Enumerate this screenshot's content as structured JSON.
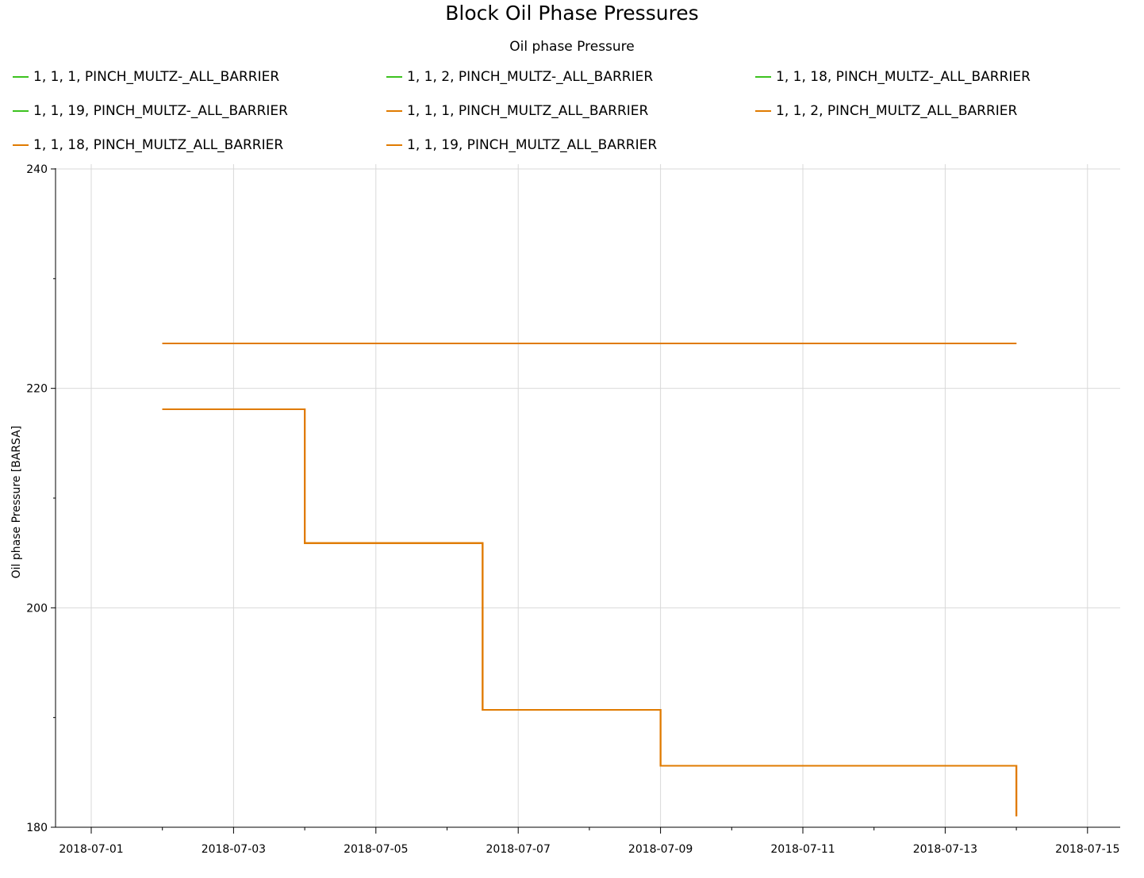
{
  "chart_data": {
    "type": "line",
    "title": "Block Oil Phase Pressures",
    "subtitle": "Oil phase Pressure",
    "ylabel": "Oil phase Pressure [BARSA]",
    "xlabel": "",
    "xlim": [
      "2018-07-01",
      "2018-07-15"
    ],
    "ylim": [
      180,
      240
    ],
    "x_ticks": [
      "2018-07-01",
      "2018-07-03",
      "2018-07-05",
      "2018-07-07",
      "2018-07-09",
      "2018-07-11",
      "2018-07-13",
      "2018-07-15"
    ],
    "y_ticks": [
      180,
      200,
      220,
      240
    ],
    "grid": true,
    "legend_position": "top",
    "step": true,
    "series": [
      {
        "name": "1, 1, 1, PINCH_MULTZ-_ALL_BARRIER",
        "color": "#3cb371",
        "x": [
          "2018-07-02",
          "2018-07-04",
          "2018-07-06.5",
          "2018-07-09",
          "2018-07-14"
        ],
        "y": [
          218.1,
          205.9,
          190.7,
          185.6,
          181.0
        ]
      },
      {
        "name": "1, 1, 2, PINCH_MULTZ-_ALL_BARRIER",
        "color": "#3cb371",
        "x": [
          "2018-07-02",
          "2018-07-04",
          "2018-07-06.5",
          "2018-07-09",
          "2018-07-14"
        ],
        "y": [
          218.1,
          205.9,
          190.7,
          185.6,
          181.0
        ]
      },
      {
        "name": "1, 1, 18, PINCH_MULTZ-_ALL_BARRIER",
        "color": "#3cb371",
        "x": [
          "2018-07-02",
          "2018-07-14"
        ],
        "y": [
          224.1,
          224.1
        ]
      },
      {
        "name": "1, 1, 19, PINCH_MULTZ-_ALL_BARRIER",
        "color": "#3cb371",
        "x": [
          "2018-07-02",
          "2018-07-14"
        ],
        "y": [
          224.1,
          224.1
        ]
      },
      {
        "name": "1, 1, 1, PINCH_MULTZ_ALL_BARRIER",
        "color": "#e07b00",
        "x": [
          "2018-07-02",
          "2018-07-04",
          "2018-07-06.5",
          "2018-07-09",
          "2018-07-14"
        ],
        "y": [
          218.1,
          205.9,
          190.7,
          185.6,
          181.0
        ]
      },
      {
        "name": "1, 1, 2, PINCH_MULTZ_ALL_BARRIER",
        "color": "#e07b00",
        "x": [
          "2018-07-02",
          "2018-07-04",
          "2018-07-06.5",
          "2018-07-09",
          "2018-07-14"
        ],
        "y": [
          218.1,
          205.9,
          190.7,
          185.6,
          181.0
        ]
      },
      {
        "name": "1, 1, 18, PINCH_MULTZ_ALL_BARRIER",
        "color": "#e07b00",
        "x": [
          "2018-07-02",
          "2018-07-14"
        ],
        "y": [
          224.1,
          224.1
        ]
      },
      {
        "name": "1, 1, 19, PINCH_MULTZ_ALL_BARRIER",
        "color": "#e07b00",
        "x": [
          "2018-07-02",
          "2018-07-14"
        ],
        "y": [
          224.1,
          224.1
        ]
      }
    ]
  },
  "legend_swatch_colors": [
    "#3cc21f",
    "#3cc21f",
    "#3cc21f",
    "#3cc21f",
    "#e07b00",
    "#e07b00",
    "#e07b00",
    "#e07b00"
  ]
}
